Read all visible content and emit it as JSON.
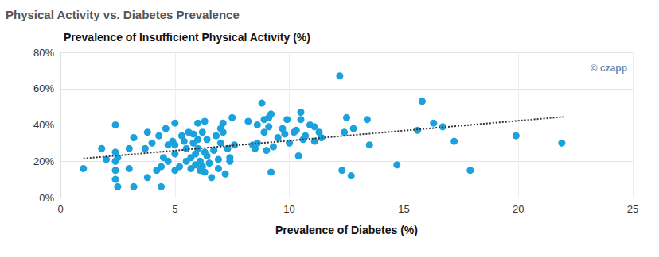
{
  "chart_data": {
    "type": "scatter",
    "title": "Physical Activity vs. Diabetes Prevalence",
    "y_label": "Prevalence of Insufficient Physical Activity (%)",
    "x_label": "Prevalence of Diabetes (%)",
    "annotation": "© czapp",
    "color": "#1ba1dc",
    "marker": "circle",
    "grid": true,
    "xlim": [
      0,
      25
    ],
    "xticks": [
      0,
      5,
      10,
      15,
      20,
      25
    ],
    "ylim": [
      0,
      80
    ],
    "yticks": [
      {
        "value": 0,
        "label": "0%"
      },
      {
        "value": 20,
        "label": "20%"
      },
      {
        "value": 40,
        "label": "40%"
      },
      {
        "value": 60,
        "label": "60%"
      },
      {
        "value": 80,
        "label": "80%"
      }
    ],
    "x": [
      1.0,
      1.8,
      2.0,
      2.4,
      2.4,
      2.4,
      2.4,
      2.4,
      2.5,
      2.5,
      3.0,
      3.0,
      3.2,
      3.2,
      3.7,
      3.8,
      3.8,
      4.0,
      4.2,
      4.3,
      4.4,
      4.4,
      4.5,
      4.6,
      4.7,
      4.7,
      4.9,
      5.0,
      5.0,
      5.0,
      5.0,
      5.2,
      5.3,
      5.4,
      5.5,
      5.5,
      5.6,
      5.7,
      5.7,
      5.8,
      5.8,
      5.9,
      5.9,
      6.0,
      6.0,
      6.0,
      6.1,
      6.1,
      6.2,
      6.2,
      6.3,
      6.3,
      6.3,
      6.4,
      6.4,
      6.5,
      6.6,
      6.7,
      6.8,
      6.9,
      6.9,
      7.0,
      7.0,
      7.1,
      7.1,
      7.2,
      7.3,
      7.4,
      7.4,
      7.5,
      7.6,
      8.2,
      8.4,
      8.5,
      8.6,
      8.6,
      8.8,
      8.9,
      8.9,
      9.0,
      9.1,
      9.1,
      9.2,
      9.2,
      9.3,
      9.5,
      9.7,
      9.8,
      9.9,
      10.0,
      10.2,
      10.3,
      10.4,
      10.5,
      10.5,
      10.6,
      10.7,
      10.9,
      11.1,
      11.1,
      11.3,
      11.4,
      12.2,
      12.3,
      12.4,
      12.5,
      12.7,
      12.8,
      13.4,
      13.5,
      14.7,
      15.6,
      15.8,
      16.3,
      16.7,
      17.2,
      17.9,
      19.9,
      21.9
    ],
    "values": [
      16,
      27,
      21,
      40,
      25,
      20,
      15,
      10,
      6,
      22,
      16,
      27,
      6,
      33,
      27,
      36,
      11,
      30,
      15,
      34,
      6,
      17,
      22,
      38,
      29,
      20,
      31,
      15,
      24,
      29,
      41,
      17,
      34,
      31,
      20,
      27,
      36,
      22,
      16,
      30,
      35,
      24,
      18,
      41,
      32,
      27,
      15,
      20,
      36,
      17,
      25,
      14,
      42,
      32,
      23,
      19,
      11,
      26,
      34,
      16,
      21,
      38,
      30,
      41,
      36,
      13,
      27,
      22,
      20,
      44,
      29,
      42,
      29,
      27,
      30,
      40,
      52,
      43,
      36,
      26,
      44,
      39,
      46,
      14,
      28,
      33,
      38,
      35,
      43,
      30,
      36,
      37,
      23,
      47,
      43,
      32,
      34,
      40,
      39,
      31,
      36,
      33,
      67,
      15,
      36,
      44,
      12,
      38,
      43,
      29,
      18,
      37,
      53,
      41,
      39,
      31,
      15,
      34,
      30
    ],
    "trend_line": {
      "x": [
        1,
        22
      ],
      "y": [
        21.5,
        44.5
      ],
      "line_style": "dotted",
      "color": "#333333"
    }
  }
}
